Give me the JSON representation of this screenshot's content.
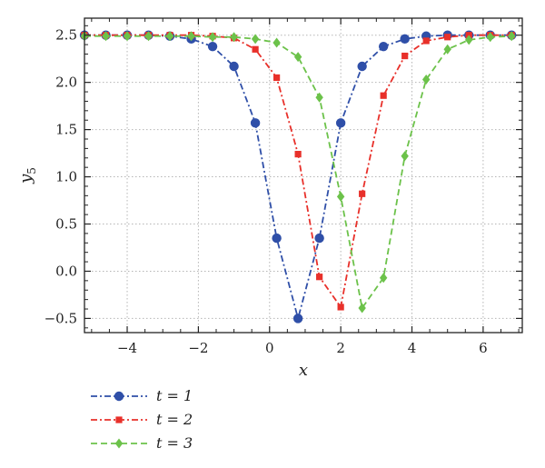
{
  "chart_data": {
    "type": "line",
    "xlabel": "x",
    "ylabel_main": "y",
    "ylabel_sub": "5",
    "xlim": [
      -5.2,
      7.1
    ],
    "ylim": [
      -0.65,
      2.68
    ],
    "xticks": [
      -4,
      -2,
      0,
      2,
      4,
      6
    ],
    "xtick_labels": [
      "−4",
      "−2",
      "0",
      "2",
      "4",
      "6"
    ],
    "yticks": [
      -0.5,
      0.0,
      0.5,
      1.0,
      1.5,
      2.0,
      2.5
    ],
    "ytick_labels": [
      "−0.5",
      "0.0",
      "0.5",
      "1.0",
      "1.5",
      "2.0",
      "2.5"
    ],
    "grid": true,
    "legend_position": "below",
    "series": [
      {
        "name": "t = 1",
        "color": "#2f4fa8",
        "marker": "circle",
        "dash": "dash-dot",
        "x": [
          -5.2,
          -4.6,
          -4.0,
          -3.4,
          -2.8,
          -2.2,
          -1.6,
          -1.0,
          -0.4,
          0.2,
          0.8,
          1.4,
          2.0,
          2.6,
          3.2,
          3.8,
          4.4,
          5.0,
          5.6,
          6.2,
          6.8
        ],
        "y": [
          2.5,
          2.5,
          2.5,
          2.5,
          2.49,
          2.46,
          2.38,
          2.17,
          1.57,
          0.35,
          -0.5,
          0.35,
          1.57,
          2.17,
          2.38,
          2.46,
          2.49,
          2.5,
          2.5,
          2.5,
          2.5
        ]
      },
      {
        "name": "t = 2",
        "color": "#e8302a",
        "marker": "square",
        "dash": "dash-dot",
        "x": [
          -5.2,
          -4.6,
          -4.0,
          -3.4,
          -2.8,
          -2.2,
          -1.6,
          -1.0,
          -0.4,
          0.2,
          0.8,
          1.4,
          2.0,
          2.6,
          3.2,
          3.8,
          4.4,
          5.0,
          5.6,
          6.2,
          6.8
        ],
        "y": [
          2.5,
          2.5,
          2.5,
          2.5,
          2.5,
          2.5,
          2.49,
          2.47,
          2.35,
          2.05,
          1.24,
          -0.06,
          -0.38,
          0.82,
          1.86,
          2.28,
          2.44,
          2.48,
          2.5,
          2.5,
          2.5
        ]
      },
      {
        "name": "t = 3",
        "color": "#6cc24a",
        "marker": "diamond",
        "dash": "dash",
        "x": [
          -5.2,
          -4.6,
          -4.0,
          -3.4,
          -2.8,
          -2.2,
          -1.6,
          -1.0,
          -0.4,
          0.2,
          0.8,
          1.4,
          2.0,
          2.6,
          3.2,
          3.8,
          4.4,
          5.0,
          5.6,
          6.2,
          6.8
        ],
        "y": [
          2.49,
          2.49,
          2.49,
          2.49,
          2.49,
          2.49,
          2.48,
          2.48,
          2.46,
          2.42,
          2.27,
          1.84,
          0.79,
          -0.39,
          -0.07,
          1.22,
          2.03,
          2.35,
          2.45,
          2.48,
          2.49
        ]
      }
    ]
  }
}
